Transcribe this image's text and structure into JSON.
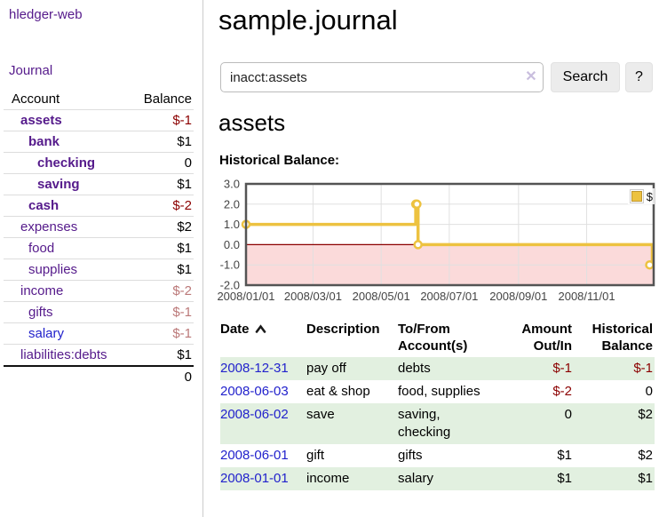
{
  "app": {
    "brand": "hledger-web",
    "nav_journal": "Journal"
  },
  "sidebar": {
    "headers": {
      "account": "Account",
      "balance": "Balance"
    },
    "accounts": [
      {
        "name": "assets",
        "depth_style": "d1",
        "link_style": "purple bold",
        "balance": "$-1",
        "bal_style": "neg-strong"
      },
      {
        "name": "bank",
        "depth_style": "d2",
        "link_style": "purple bold",
        "balance": "$1",
        "bal_style": "strong"
      },
      {
        "name": "checking",
        "depth_style": "d3",
        "link_style": "purple bold",
        "balance": "0",
        "bal_style": "strong"
      },
      {
        "name": "saving",
        "depth_style": "d3",
        "link_style": "purple bold",
        "balance": "$1",
        "bal_style": "strong"
      },
      {
        "name": "cash",
        "depth_style": "d2",
        "link_style": "purple bold",
        "balance": "$-2",
        "bal_style": "neg-strong"
      },
      {
        "name": "expenses",
        "depth_style": "d1",
        "link_style": "purple",
        "balance": "$2",
        "bal_style": "plain"
      },
      {
        "name": "food",
        "depth_style": "d2",
        "link_style": "purple",
        "balance": "$1",
        "bal_style": "plain"
      },
      {
        "name": "supplies",
        "depth_style": "d2",
        "link_style": "purple",
        "balance": "$1",
        "bal_style": "plain"
      },
      {
        "name": "income",
        "depth_style": "d1",
        "link_style": "purple",
        "balance": "$-2",
        "bal_style": "neg-soft"
      },
      {
        "name": "gifts",
        "depth_style": "d2",
        "link_style": "purple",
        "balance": "$-1",
        "bal_style": "neg-soft"
      },
      {
        "name": "salary",
        "depth_style": "d2",
        "link_style": "blue",
        "balance": "$-1",
        "bal_style": "neg-soft"
      },
      {
        "name": "liabilities:debts",
        "depth_style": "d1",
        "link_style": "purple",
        "balance": "$1",
        "bal_style": "plain"
      }
    ],
    "total": "0"
  },
  "header": {
    "title": "sample.journal"
  },
  "search": {
    "value": "inacct:assets",
    "clear_icon": "✕",
    "button": "Search",
    "help_button": "?"
  },
  "account_page": {
    "heading": "assets",
    "chart_label": "Historical Balance:"
  },
  "chart_data": {
    "type": "line",
    "step": true,
    "title": "Historical Balance",
    "series": [
      {
        "name": "$",
        "color": "#edc240",
        "points": [
          [
            "2008-01-01",
            1
          ],
          [
            "2008-06-01",
            2
          ],
          [
            "2008-06-02",
            2
          ],
          [
            "2008-06-03",
            0
          ],
          [
            "2008-12-31",
            -1
          ]
        ]
      }
    ],
    "x_range": [
      "2008-01-01",
      "2008-12-31"
    ],
    "ylim": [
      -2,
      3
    ],
    "yticks": [
      "3.0",
      "2.0",
      "1.0",
      "0.0",
      "-1.0",
      "-2.0"
    ],
    "xticks": [
      {
        "label": "2008/01/01",
        "date": "2008-01-01"
      },
      {
        "label": "2008/03/01",
        "date": "2008-03-01"
      },
      {
        "label": "2008/05/01",
        "date": "2008-05-01"
      },
      {
        "label": "2008/07/01",
        "date": "2008-07-01"
      },
      {
        "label": "2008/09/01",
        "date": "2008-09-01"
      },
      {
        "label": "2008/11/01",
        "date": "2008-11-01"
      }
    ],
    "legend": {
      "label": "$",
      "position": "top-right"
    },
    "grid": true,
    "negative_region_fill": "#fbdada",
    "zero_line_color": "#8b0000",
    "grid_color": "#e0e0e0",
    "border_color": "#545454"
  },
  "journal_table": {
    "headers": {
      "date": "Date",
      "description": "Description",
      "tofrom_l1": "To/From",
      "tofrom_l2": "Account(s)",
      "amount_l1": "Amount",
      "amount_l2": "Out/In",
      "hist_l1": "Historical",
      "hist_l2": "Balance"
    },
    "rows": [
      {
        "date": "2008-12-31",
        "description": "pay off",
        "accounts": "debts",
        "amount": "$-1",
        "amount_style": "neg",
        "balance": "$-1",
        "balance_style": "neg"
      },
      {
        "date": "2008-06-03",
        "description": "eat & shop",
        "accounts": "food, supplies",
        "amount": "$-2",
        "amount_style": "neg",
        "balance": "0",
        "balance_style": "pos"
      },
      {
        "date": "2008-06-02",
        "description": "save",
        "accounts": "saving, checking",
        "amount": "0",
        "amount_style": "pos",
        "balance": "$2",
        "balance_style": "pos"
      },
      {
        "date": "2008-06-01",
        "description": "gift",
        "accounts": "gifts",
        "amount": "$1",
        "amount_style": "pos",
        "balance": "$2",
        "balance_style": "pos"
      },
      {
        "date": "2008-01-01",
        "description": "income",
        "accounts": "salary",
        "amount": "$1",
        "amount_style": "pos",
        "balance": "$1",
        "balance_style": "pos"
      }
    ]
  }
}
